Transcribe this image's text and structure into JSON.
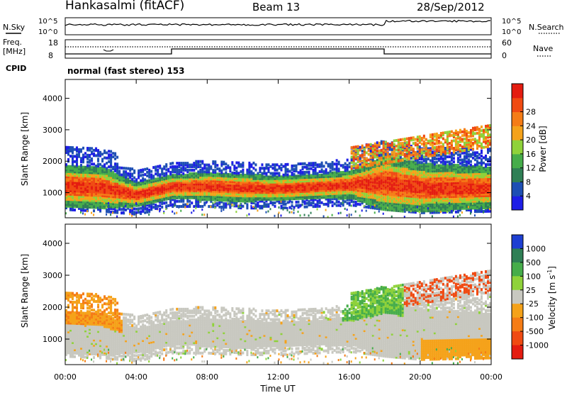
{
  "header": {
    "station": "Hankasalmi (fitACF)",
    "beam": "Beam 13",
    "date": "28/Sep/2012"
  },
  "top_panels": {
    "nsky_label": "N.Sky",
    "nsky_ticks": [
      "10^5",
      "10^0"
    ],
    "nsearch_label": "N.Search",
    "nsearch_ticks": [
      "10^5",
      "10^0"
    ],
    "freq_label_1": "Freq.",
    "freq_label_2": "[MHz]",
    "freq_ticks": [
      "18",
      "8"
    ],
    "nave_label": "Nave",
    "nave_ticks": [
      "60",
      "0"
    ],
    "cpid_label": "CPID",
    "cpid_text": "normal (fast stereo) 153"
  },
  "x_axis": {
    "label": "Time UT",
    "ticks": [
      "00:00",
      "04:00",
      "08:00",
      "12:00",
      "16:00",
      "20:00",
      "00:00"
    ]
  },
  "chart_data": [
    {
      "type": "heatmap",
      "panel": "power",
      "ylabel": "Slant Range [km]",
      "yticks": [
        "1000",
        "2000",
        "3000",
        "4000"
      ],
      "ylim": [
        200,
        4600
      ],
      "xlim_hours": [
        0,
        24
      ],
      "colorbar": {
        "label": "Power [dB]",
        "ticks": [
          "4",
          "8",
          "12",
          "16",
          "20",
          "24",
          "28"
        ],
        "colors": [
          "#1e1ee6",
          "#1e4fb4",
          "#2f7f55",
          "#46ad4a",
          "#8fd23a",
          "#f5a21a",
          "#f57c16",
          "#f04a12",
          "#e41c10"
        ]
      },
      "bands": [
        {
          "t": 0,
          "lo": 900,
          "hi": 1500
        },
        {
          "t": 2,
          "lo": 850,
          "hi": 1450
        },
        {
          "t": 4,
          "lo": 750,
          "hi": 1100
        },
        {
          "t": 6,
          "lo": 1000,
          "hi": 1350
        },
        {
          "t": 8,
          "lo": 1000,
          "hi": 1400
        },
        {
          "t": 10,
          "lo": 950,
          "hi": 1350
        },
        {
          "t": 12,
          "lo": 950,
          "hi": 1300
        },
        {
          "t": 14,
          "lo": 1000,
          "hi": 1350
        },
        {
          "t": 16,
          "lo": 1050,
          "hi": 1450
        },
        {
          "t": 18,
          "lo": 900,
          "hi": 1700
        },
        {
          "t": 20,
          "lo": 800,
          "hi": 1500
        },
        {
          "t": 24,
          "lo": 850,
          "hi": 1450
        }
      ]
    },
    {
      "type": "heatmap",
      "panel": "velocity",
      "ylabel": "Slant Range [km]",
      "yticks": [
        "1000",
        "2000",
        "3000",
        "4000"
      ],
      "ylim": [
        200,
        4600
      ],
      "xlim_hours": [
        0,
        24
      ],
      "colorbar": {
        "label": "Velocity [m s",
        "label_sup": "-1",
        "label_close": "]",
        "ticks": [
          "1000",
          "500",
          "100",
          "25",
          "-25",
          "-100",
          "-500",
          "-1000"
        ],
        "colors": [
          "#1e3fd2",
          "#2f7f55",
          "#46ad4a",
          "#8fd23a",
          "#c8c8c0",
          "#f5a21a",
          "#f57c16",
          "#f04a12",
          "#e41c10"
        ]
      }
    }
  ]
}
